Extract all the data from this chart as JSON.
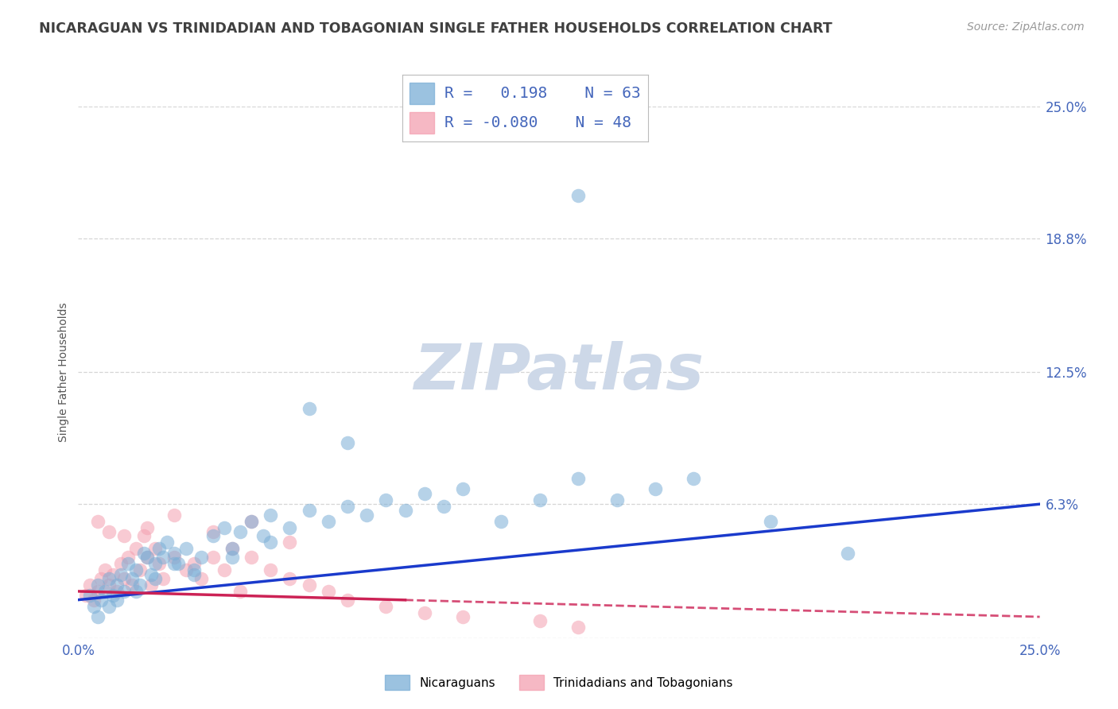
{
  "title": "NICARAGUAN VS TRINIDADIAN AND TOBAGONIAN SINGLE FATHER HOUSEHOLDS CORRELATION CHART",
  "source": "Source: ZipAtlas.com",
  "ylabel": "Single Father Households",
  "xlim": [
    0.0,
    0.25
  ],
  "ylim": [
    0.0,
    0.25
  ],
  "ytick_vals": [
    0.0,
    0.063,
    0.125,
    0.188,
    0.25
  ],
  "ytick_labels": [
    "",
    "6.3%",
    "12.5%",
    "18.8%",
    "25.0%"
  ],
  "xtick_vals": [
    0.0,
    0.25
  ],
  "xtick_labels": [
    "0.0%",
    "25.0%"
  ],
  "blue_R": 0.198,
  "blue_N": 63,
  "pink_R": -0.08,
  "pink_N": 48,
  "blue_color": "#7aaed6",
  "pink_color": "#f4a0b0",
  "blue_line_color": "#1a3acc",
  "pink_line_color": "#cc2255",
  "watermark_color": "#cdd8e8",
  "background_color": "#ffffff",
  "grid_color": "#cccccc",
  "title_color": "#404040",
  "label_color": "#4466bb",
  "blue_scatter_x": [
    0.003,
    0.004,
    0.005,
    0.006,
    0.007,
    0.008,
    0.009,
    0.01,
    0.011,
    0.012,
    0.013,
    0.014,
    0.015,
    0.016,
    0.017,
    0.018,
    0.019,
    0.02,
    0.021,
    0.022,
    0.023,
    0.025,
    0.026,
    0.028,
    0.03,
    0.032,
    0.035,
    0.038,
    0.04,
    0.042,
    0.045,
    0.048,
    0.05,
    0.055,
    0.06,
    0.065,
    0.07,
    0.075,
    0.08,
    0.085,
    0.09,
    0.095,
    0.1,
    0.11,
    0.12,
    0.13,
    0.14,
    0.15,
    0.16,
    0.18,
    0.2,
    0.005,
    0.008,
    0.01,
    0.015,
    0.02,
    0.025,
    0.03,
    0.04,
    0.05,
    0.06,
    0.07,
    0.13
  ],
  "blue_scatter_y": [
    0.02,
    0.015,
    0.025,
    0.018,
    0.022,
    0.028,
    0.02,
    0.025,
    0.03,
    0.022,
    0.035,
    0.028,
    0.032,
    0.025,
    0.04,
    0.038,
    0.03,
    0.035,
    0.042,
    0.038,
    0.045,
    0.04,
    0.035,
    0.042,
    0.03,
    0.038,
    0.048,
    0.052,
    0.042,
    0.05,
    0.055,
    0.048,
    0.058,
    0.052,
    0.06,
    0.055,
    0.062,
    0.058,
    0.065,
    0.06,
    0.068,
    0.062,
    0.07,
    0.055,
    0.065,
    0.075,
    0.065,
    0.07,
    0.075,
    0.055,
    0.04,
    0.01,
    0.015,
    0.018,
    0.022,
    0.028,
    0.035,
    0.032,
    0.038,
    0.045,
    0.108,
    0.092,
    0.208
  ],
  "pink_scatter_x": [
    0.002,
    0.003,
    0.004,
    0.005,
    0.006,
    0.007,
    0.008,
    0.009,
    0.01,
    0.011,
    0.012,
    0.013,
    0.014,
    0.015,
    0.016,
    0.017,
    0.018,
    0.019,
    0.02,
    0.021,
    0.022,
    0.025,
    0.028,
    0.03,
    0.032,
    0.035,
    0.038,
    0.04,
    0.042,
    0.045,
    0.05,
    0.055,
    0.06,
    0.065,
    0.07,
    0.08,
    0.09,
    0.1,
    0.12,
    0.13,
    0.005,
    0.008,
    0.012,
    0.018,
    0.025,
    0.035,
    0.045,
    0.055
  ],
  "pink_scatter_y": [
    0.02,
    0.025,
    0.018,
    0.022,
    0.028,
    0.032,
    0.025,
    0.03,
    0.022,
    0.035,
    0.028,
    0.038,
    0.025,
    0.042,
    0.032,
    0.048,
    0.038,
    0.025,
    0.042,
    0.035,
    0.028,
    0.038,
    0.032,
    0.035,
    0.028,
    0.038,
    0.032,
    0.042,
    0.022,
    0.038,
    0.032,
    0.028,
    0.025,
    0.022,
    0.018,
    0.015,
    0.012,
    0.01,
    0.008,
    0.005,
    0.055,
    0.05,
    0.048,
    0.052,
    0.058,
    0.05,
    0.055,
    0.045
  ]
}
